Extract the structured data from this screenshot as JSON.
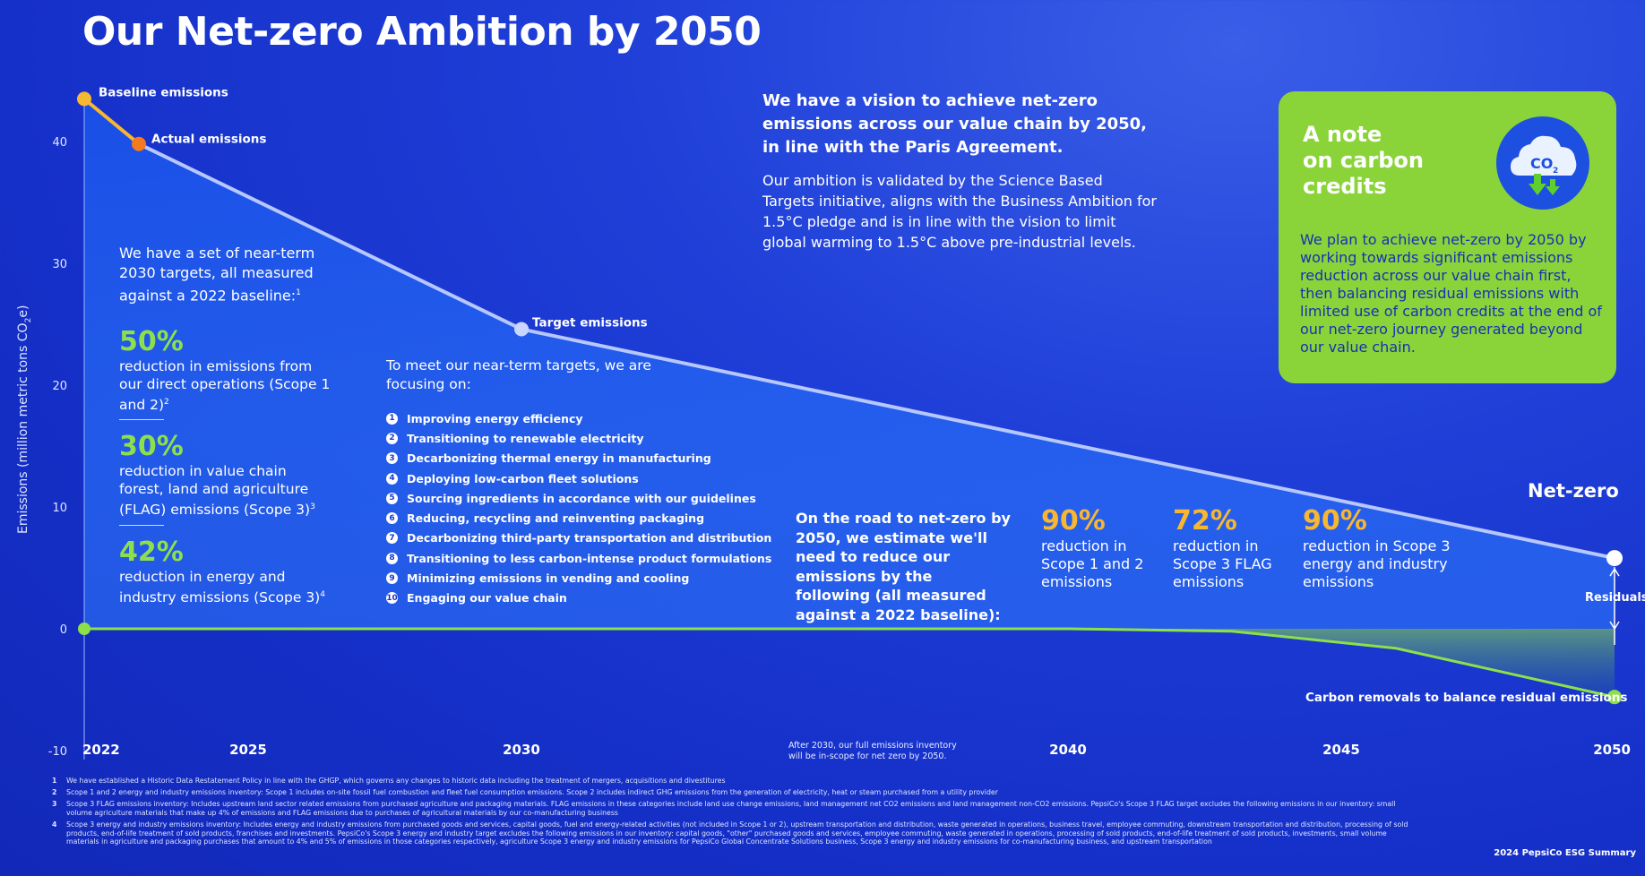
{
  "title": "Our Net-zero Ambition by 2050",
  "chart_data": {
    "type": "line",
    "ylabel": "Emissions (million metric tons CO2e)",
    "ylim": [
      -10,
      45
    ],
    "xlim": [
      2022,
      2050
    ],
    "y_ticks": [
      -10,
      0,
      10,
      20,
      30,
      40
    ],
    "x_ticks": [
      2022,
      2025,
      2030,
      2040,
      2045,
      2050
    ],
    "grid": false,
    "series": [
      {
        "name": "Baseline emissions",
        "points": [
          [
            2022,
            43.5
          ],
          [
            2023,
            39.8
          ]
        ]
      },
      {
        "name": "Target emissions",
        "points": [
          [
            2023,
            39.8
          ],
          [
            2030,
            24.6
          ],
          [
            2050,
            5.8
          ]
        ]
      },
      {
        "name": "Carbon removals to balance residual emissions",
        "points": [
          [
            2022,
            0
          ],
          [
            2040,
            0
          ],
          [
            2043,
            -0.2
          ],
          [
            2046,
            -1.6
          ],
          [
            2048,
            -3.6
          ],
          [
            2050,
            -5.6
          ]
        ]
      }
    ],
    "annotations": [
      {
        "label": "Baseline emissions",
        "x": 2022,
        "y": 43.5
      },
      {
        "label": "Actual emissions",
        "x": 2023,
        "y": 39.8
      },
      {
        "label": "Target emissions",
        "x": 2030,
        "y": 24.6
      },
      {
        "label": "Net-zero",
        "x": 2050,
        "y": 5.8
      },
      {
        "label": "Residuals",
        "x": 2050,
        "y": 0
      },
      {
        "label": "Carbon removals to balance residual emissions",
        "x": 2050,
        "y": -5.6
      }
    ]
  },
  "labels": {
    "ylabel_main": "Emissions (million metric tons CO",
    "ylabel_sub": "2",
    "ylabel_end": "e)",
    "baseline": "Baseline emissions",
    "actual": "Actual emissions",
    "target": "Target emissions",
    "netzero": "Net-zero",
    "residuals": "Residuals",
    "removals": "Carbon removals to balance residual emissions",
    "after_2030_line1": "After 2030, our full emissions inventory",
    "after_2030_line2": "will be in-scope for net zero by 2050."
  },
  "near_term": {
    "intro": "We have a set of near-term 2030 targets, all measured against a 2022 baseline:",
    "intro_sup": "1",
    "stats": [
      {
        "pct": "50%",
        "desc": "reduction in emissions from our direct operations (Scope 1 and 2)",
        "sup": "2"
      },
      {
        "pct": "30%",
        "desc": "reduction in value chain forest, land and agriculture (FLAG) emissions (Scope 3)",
        "sup": "3"
      },
      {
        "pct": "42%",
        "desc": "reduction in energy and industry emissions (Scope 3)",
        "sup": "4"
      }
    ]
  },
  "focus": {
    "intro": "To meet our near-term targets, we are focusing on:",
    "items": [
      "Improving energy efficiency",
      "Transitioning to renewable electricity",
      "Decarbonizing thermal energy in manufacturing",
      "Deploying low-carbon fleet solutions",
      "Sourcing ingredients in accordance with our guidelines",
      "Reducing, recycling and reinventing packaging",
      "Decarbonizing third-party transportation and distribution",
      "Transitioning to less carbon-intense product formulations",
      "Minimizing emissions in vending and cooling",
      "Engaging our value chain"
    ]
  },
  "vision": {
    "headline": "We have a vision to achieve net-zero emissions across our value chain by 2050, in line with the Paris Agreement.",
    "body": "Our ambition is validated by the Science Based Targets initiative, aligns with the Business Ambition for 1.5°C pledge and is in line with the vision to limit global warming to 1.5°C above pre-industrial levels."
  },
  "road": {
    "intro": "On the road to net-zero by 2050, we estimate we'll need to reduce our emissions by the following (all measured against a 2022 baseline):",
    "stats": [
      {
        "pct": "90%",
        "desc": "reduction in Scope 1 and 2 emissions"
      },
      {
        "pct": "72%",
        "desc": "reduction in Scope 3 FLAG emissions"
      },
      {
        "pct": "90%",
        "desc": "reduction in Scope 3 energy and industry emissions"
      }
    ]
  },
  "note": {
    "title_l1": "A note",
    "title_l2": "on carbon",
    "title_l3": "credits",
    "icon": "co2-cloud-icon",
    "icon_text": "CO",
    "icon_sub": "2",
    "body": "We plan to achieve net-zero by 2050 by working towards significant emissions reduction across our value chain first, then balancing residual emissions with limited use of carbon credits at the end of our net-zero journey generated beyond our value chain."
  },
  "footnotes": [
    {
      "n": "1",
      "text": "We have established a Historic Data Restatement Policy in line with the GHGP, which governs any changes to historic data including the treatment of mergers, acquisitions and divestitures"
    },
    {
      "n": "2",
      "text": "Scope 1 and 2 energy and industry emissions inventory: Scope 1 includes on-site fossil fuel combustion and fleet fuel consumption emissions. Scope 2 includes indirect GHG emissions from the generation of electricity, heat or steam purchased from a utility provider"
    },
    {
      "n": "3",
      "text": "Scope 3 FLAG emissions inventory: Includes upstream land sector related emissions from purchased agriculture and packaging materials. FLAG emissions in these categories include land use change emissions, land management net CO2 emissions and land management non-CO2 emissions. PepsiCo's Scope 3 FLAG target excludes the following emissions in our inventory: small volume agriculture materials that make up 4% of emissions and FLAG emissions due to purchases of agricultural materials by our co-manufacturing business"
    },
    {
      "n": "4",
      "text": "Scope 3 energy and industry emissions inventory: Includes energy and industry emissions from purchased goods and services, capital goods, fuel and energy-related activities (not included in Scope 1 or 2), upstream transportation and distribution, waste generated in operations, business travel, employee commuting, downstream transportation and distribution, processing of sold products, end-of-life treatment of sold products, franchises and investments. PepsiCo's Scope 3 energy and industry target excludes the following emissions in our inventory: capital goods, \"other\" purchased goods and services, employee commuting, waste generated in operations, processing of sold products, end-of-life treatment of sold products, investments, small volume materials in agriculture and packaging purchases that amount to 4% and 5% of emissions in those categories respectively, agriculture Scope 3 energy and industry emissions for PepsiCo Global Concentrate Solutions business, Scope 3 energy and industry emissions for co-manufacturing business, and upstream transportation"
    }
  ],
  "footer": "2024 PepsiCo ESG Summary",
  "colors": {
    "background": "#1a35cc",
    "line": "#b7c7ff",
    "baseline_line": "#f7b731",
    "actual_dot": "#f47a1f",
    "green": "#8ee04a",
    "yellow": "#f7b731",
    "note_bg": "#8ad43a"
  }
}
